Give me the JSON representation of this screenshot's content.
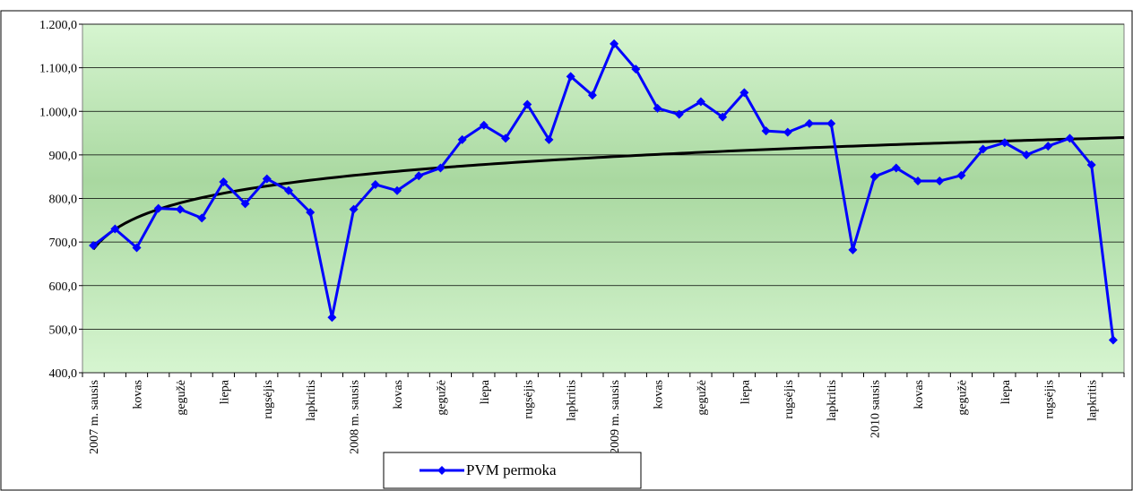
{
  "chart_data": {
    "type": "line",
    "categories": [
      "2007 m. sausis",
      null,
      "kovas",
      null,
      "gegužė",
      null,
      "liepa",
      null,
      "rugsėjis",
      null,
      "lapkritis",
      null,
      "2008 m. sausis",
      null,
      "kovas",
      null,
      "gegužė",
      null,
      "liepa",
      null,
      "rugsėjis",
      null,
      "lapkritis",
      null,
      "2009 m. sausis",
      null,
      "kovas",
      null,
      "gegužė",
      null,
      "liepa",
      null,
      "rugsėjis",
      null,
      "lapkritis",
      null,
      "2010 sausis",
      null,
      "kovas",
      null,
      "gegužė",
      null,
      "liepa",
      null,
      "rugsėjis",
      null,
      "lapkritis",
      null
    ],
    "series": [
      {
        "name": "PVM permoka",
        "color": "#0000ff",
        "values": [
          692,
          730,
          687,
          777,
          775,
          755,
          838,
          788,
          845,
          818,
          768,
          527,
          775,
          832,
          818,
          852,
          870,
          935,
          968,
          938,
          1016,
          935,
          1080,
          1037,
          1155,
          1097,
          1007,
          993,
          1022,
          987,
          1043,
          955,
          952,
          972,
          972,
          682,
          850,
          870,
          840,
          840,
          853,
          913,
          928,
          900,
          920,
          938,
          877,
          475
        ]
      }
    ],
    "trendline": {
      "type": "logarithmic",
      "color": "#000000"
    },
    "ylim": [
      400,
      1200
    ],
    "yticks": [
      {
        "value": 400,
        "label": "400,0"
      },
      {
        "value": 500,
        "label": "500,0"
      },
      {
        "value": 600,
        "label": "600,0"
      },
      {
        "value": 700,
        "label": "700,0"
      },
      {
        "value": 800,
        "label": "800,0"
      },
      {
        "value": 900,
        "label": "900,0"
      },
      {
        "value": 1000,
        "label": "1.000,0"
      },
      {
        "value": 1100,
        "label": "1.100,0"
      },
      {
        "value": 1200,
        "label": "1.200,0"
      }
    ],
    "grid": true,
    "legend": "bottom"
  }
}
